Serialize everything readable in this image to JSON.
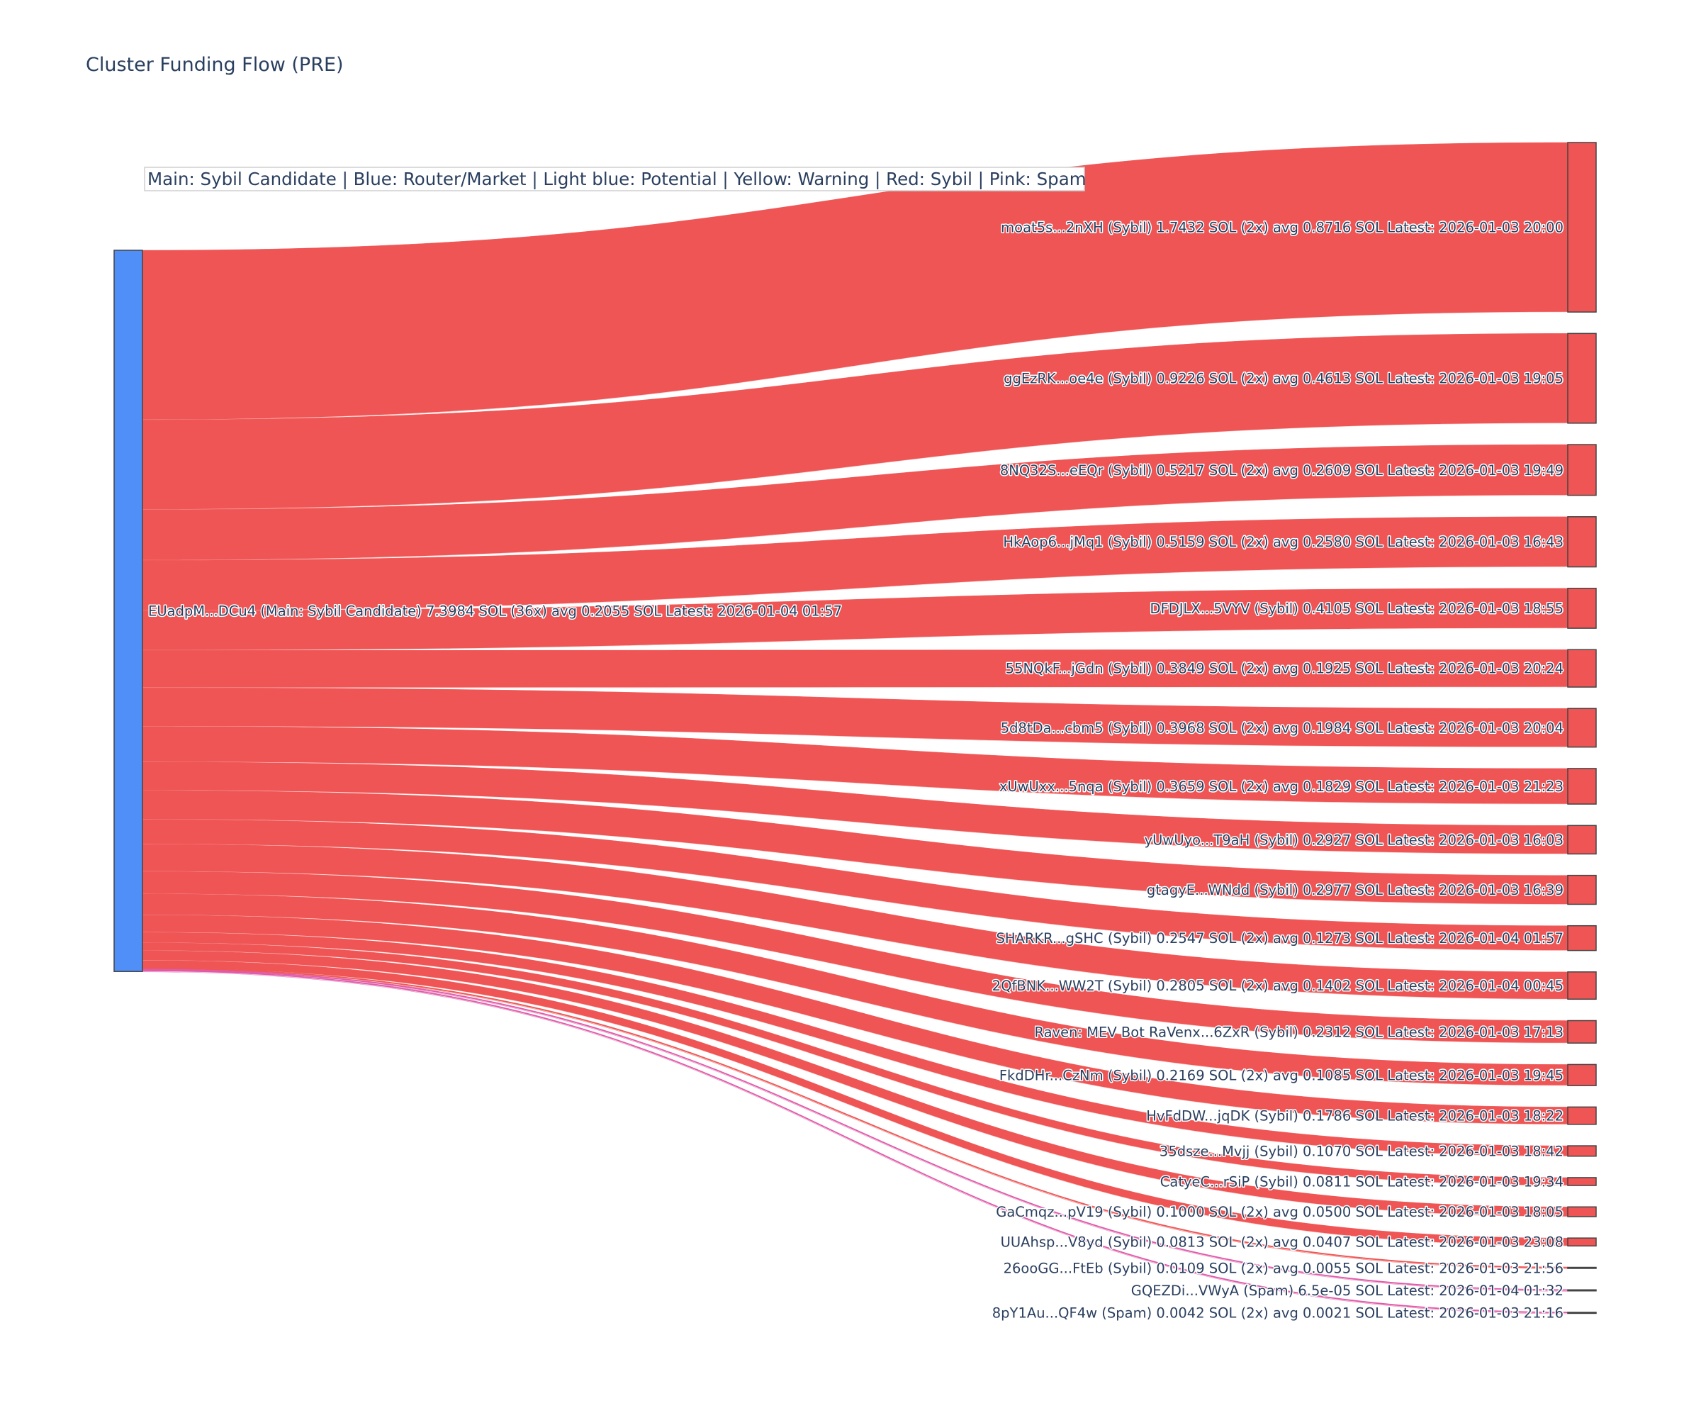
{
  "chart_data": {
    "type": "sankey",
    "title": "Cluster Funding Flow (PRE)",
    "legend_text": "Main: Sybil Candidate  |  Blue: Router/Market | Light blue: Potential | Yellow: Warning | Red: Sybil | Pink: Spam",
    "colors": {
      "main": "#4f8ff7",
      "sybil": "#ef5555",
      "spam": "#e05aa8",
      "node_border": "#444444"
    },
    "source": {
      "label": "EUadpM...DCu4 (Main: Sybil Candidate) 7.3984 SOL (36x) avg 0.2055 SOL Latest: 2026-01-04 01:57",
      "category": "main"
    },
    "targets": [
      {
        "label": "moat5s...2nXH (Sybil) 1.7432 SOL (2x) avg 0.8716 SOL Latest: 2026-01-03 20:00",
        "value": 1.7432,
        "category": "sybil"
      },
      {
        "label": "ggEzRK...oe4e (Sybil) 0.9226 SOL (2x) avg 0.4613 SOL Latest: 2026-01-03 19:05",
        "value": 0.9226,
        "category": "sybil"
      },
      {
        "label": "8NQ32S...eEQr (Sybil) 0.5217 SOL (2x) avg 0.2609 SOL Latest: 2026-01-03 19:49",
        "value": 0.5217,
        "category": "sybil"
      },
      {
        "label": "HkAop6...jMq1 (Sybil) 0.5159 SOL (2x) avg 0.2580 SOL Latest: 2026-01-03 16:43",
        "value": 0.5159,
        "category": "sybil"
      },
      {
        "label": "DFDJLX...5VYV (Sybil) 0.4105 SOL Latest: 2026-01-03 18:55",
        "value": 0.4105,
        "category": "sybil"
      },
      {
        "label": "55NQkF...jGdn (Sybil) 0.3849 SOL (2x) avg 0.1925 SOL Latest: 2026-01-03 20:24",
        "value": 0.3849,
        "category": "sybil"
      },
      {
        "label": "5d8tDa...cbm5 (Sybil) 0.3968 SOL (2x) avg 0.1984 SOL Latest: 2026-01-03 20:04",
        "value": 0.3968,
        "category": "sybil"
      },
      {
        "label": "xUwUxx...5nqa (Sybil) 0.3659 SOL (2x) avg 0.1829 SOL Latest: 2026-01-03 21:23",
        "value": 0.3659,
        "category": "sybil"
      },
      {
        "label": "yUwUyo...T9aH (Sybil) 0.2927 SOL Latest: 2026-01-03 16:03",
        "value": 0.2927,
        "category": "sybil"
      },
      {
        "label": "gtagyE...WNdd (Sybil) 0.2977 SOL Latest: 2026-01-03 16:39",
        "value": 0.2977,
        "category": "sybil"
      },
      {
        "label": "SHARKR...gSHC (Sybil) 0.2547 SOL (2x) avg 0.1273 SOL Latest: 2026-01-04 01:57",
        "value": 0.2547,
        "category": "sybil"
      },
      {
        "label": "2QfBNK...WW2T (Sybil) 0.2805 SOL (2x) avg 0.1402 SOL Latest: 2026-01-04 00:45",
        "value": 0.2805,
        "category": "sybil"
      },
      {
        "label": "Raven: MEV Bot RaVenx...6ZxR (Sybil) 0.2312 SOL Latest: 2026-01-03 17:13",
        "value": 0.2312,
        "category": "sybil"
      },
      {
        "label": "FkdDHr...CzNm (Sybil) 0.2169 SOL (2x) avg 0.1085 SOL Latest: 2026-01-03 19:45",
        "value": 0.2169,
        "category": "sybil"
      },
      {
        "label": "HvFdDW...jqDK (Sybil) 0.1786 SOL Latest: 2026-01-03 18:22",
        "value": 0.1786,
        "category": "sybil"
      },
      {
        "label": "35dsze...Mvjj (Sybil) 0.1070 SOL Latest: 2026-01-03 18:42",
        "value": 0.107,
        "category": "sybil"
      },
      {
        "label": "CatyeC...rSiP (Sybil) 0.0811 SOL Latest: 2026-01-03 19:34",
        "value": 0.0811,
        "category": "sybil"
      },
      {
        "label": "GaCmqz...pV19 (Sybil) 0.1000 SOL (2x) avg 0.0500 SOL Latest: 2026-01-03 18:05",
        "value": 0.1,
        "category": "sybil"
      },
      {
        "label": "UUAhsp...V8yd (Sybil) 0.0813 SOL (2x) avg 0.0407 SOL Latest: 2026-01-03 23:08",
        "value": 0.0813,
        "category": "sybil"
      },
      {
        "label": "26ooGG...FtEb (Sybil) 0.0109 SOL (2x) avg 0.0055 SOL Latest: 2026-01-03 21:56",
        "value": 0.0109,
        "category": "sybil"
      },
      {
        "label": "GQEZDi...VWyA (Spam) 6.5e-05 SOL Latest: 2026-01-04 01:32",
        "value": 6.5e-05,
        "category": "spam"
      },
      {
        "label": "8pY1Au...QF4w (Spam) 0.0042 SOL (2x) avg 0.0021 SOL Latest: 2026-01-03 21:16",
        "value": 0.0042,
        "category": "spam"
      }
    ]
  }
}
